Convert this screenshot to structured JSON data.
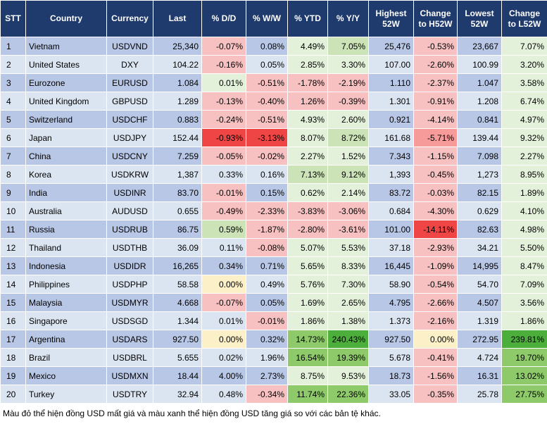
{
  "headers": [
    "STT",
    "Country",
    "Currency",
    "Last",
    "% D/D",
    "% W/W",
    "% YTD",
    "% Y/Y",
    "Highest 52W",
    "Change to H52W",
    "Lowest 52W",
    "Change to L52W"
  ],
  "rows": [
    {
      "stt": "1",
      "country": "Vietnam",
      "currency": "USDVND",
      "last": "25,340",
      "dd": "-0.07%",
      "ww": "0.08%",
      "ytd": "4.49%",
      "yy": "7.05%",
      "high": "25,476",
      "chh": "-0.53%",
      "low": "23,667",
      "chl": "7.07%"
    },
    {
      "stt": "2",
      "country": "United States",
      "currency": "DXY",
      "last": "104.22",
      "dd": "-0.16%",
      "ww": "0.05%",
      "ytd": "2.85%",
      "yy": "3.30%",
      "high": "107.00",
      "chh": "-2.60%",
      "low": "100.99",
      "chl": "3.20%"
    },
    {
      "stt": "3",
      "country": "Eurozone",
      "currency": "EURUSD",
      "last": "1.084",
      "dd": "0.01%",
      "ww": "-0.51%",
      "ytd": "-1.78%",
      "yy": "-2.19%",
      "high": "1.110",
      "chh": "-2.37%",
      "low": "1.047",
      "chl": "3.58%"
    },
    {
      "stt": "4",
      "country": "United Kingdom",
      "currency": "GBPUSD",
      "last": "1.289",
      "dd": "-0.13%",
      "ww": "-0.40%",
      "ytd": "1.26%",
      "yy": "-0.39%",
      "high": "1.301",
      "chh": "-0.91%",
      "low": "1.208",
      "chl": "6.74%"
    },
    {
      "stt": "5",
      "country": "Switzerland",
      "currency": "USDCHF",
      "last": "0.883",
      "dd": "-0.24%",
      "ww": "-0.51%",
      "ytd": "4.93%",
      "yy": "2.60%",
      "high": "0.921",
      "chh": "-4.14%",
      "low": "0.841",
      "chl": "4.97%"
    },
    {
      "stt": "6",
      "country": "Japan",
      "currency": "USDJPY",
      "last": "152.44",
      "dd": "-0.93%",
      "ww": "-3.13%",
      "ytd": "8.07%",
      "yy": "8.72%",
      "high": "161.68",
      "chh": "-5.71%",
      "low": "139.44",
      "chl": "9.32%"
    },
    {
      "stt": "7",
      "country": "China",
      "currency": "USDCNY",
      "last": "7.259",
      "dd": "-0.05%",
      "ww": "-0.02%",
      "ytd": "2.27%",
      "yy": "1.52%",
      "high": "7.343",
      "chh": "-1.15%",
      "low": "7.098",
      "chl": "2.27%"
    },
    {
      "stt": "8",
      "country": "Korea",
      "currency": "USDKRW",
      "last": "1,387",
      "dd": "0.33%",
      "ww": "0.16%",
      "ytd": "7.13%",
      "yy": "9.12%",
      "high": "1,393",
      "chh": "-0.45%",
      "low": "1,273",
      "chl": "8.95%"
    },
    {
      "stt": "9",
      "country": "India",
      "currency": "USDINR",
      "last": "83.70",
      "dd": "-0.01%",
      "ww": "0.15%",
      "ytd": "0.62%",
      "yy": "2.14%",
      "high": "83.72",
      "chh": "-0.03%",
      "low": "82.15",
      "chl": "1.89%"
    },
    {
      "stt": "10",
      "country": "Australia",
      "currency": "AUDUSD",
      "last": "0.655",
      "dd": "-0.49%",
      "ww": "-2.33%",
      "ytd": "-3.83%",
      "yy": "-3.06%",
      "high": "0.684",
      "chh": "-4.30%",
      "low": "0.629",
      "chl": "4.10%"
    },
    {
      "stt": "11",
      "country": "Russia",
      "currency": "USDRUB",
      "last": "86.75",
      "dd": "0.59%",
      "ww": "-1.87%",
      "ytd": "-2.80%",
      "yy": "-3.61%",
      "high": "101.00",
      "chh": "-14.11%",
      "low": "82.63",
      "chl": "4.98%"
    },
    {
      "stt": "12",
      "country": "Thailand",
      "currency": "USDTHB",
      "last": "36.09",
      "dd": "0.11%",
      "ww": "-0.08%",
      "ytd": "5.07%",
      "yy": "5.53%",
      "high": "37.18",
      "chh": "-2.93%",
      "low": "34.21",
      "chl": "5.50%"
    },
    {
      "stt": "13",
      "country": "Indonesia",
      "currency": "USDIDR",
      "last": "16,265",
      "dd": "0.34%",
      "ww": "0.71%",
      "ytd": "5.65%",
      "yy": "8.33%",
      "high": "16,445",
      "chh": "-1.09%",
      "low": "14,995",
      "chl": "8.47%"
    },
    {
      "stt": "14",
      "country": "Philippines",
      "currency": "USDPHP",
      "last": "58.58",
      "dd": "0.00%",
      "ww": "0.49%",
      "ytd": "5.76%",
      "yy": "7.30%",
      "high": "58.90",
      "chh": "-0.54%",
      "low": "54.70",
      "chl": "7.09%"
    },
    {
      "stt": "15",
      "country": "Malaysia",
      "currency": "USDMYR",
      "last": "4.668",
      "dd": "-0.07%",
      "ww": "0.05%",
      "ytd": "1.69%",
      "yy": "2.65%",
      "high": "4.795",
      "chh": "-2.66%",
      "low": "4.507",
      "chl": "3.56%"
    },
    {
      "stt": "16",
      "country": "Singapore",
      "currency": "USDSGD",
      "last": "1.344",
      "dd": "0.01%",
      "ww": "-0.01%",
      "ytd": "1.86%",
      "yy": "1.38%",
      "high": "1.373",
      "chh": "-2.16%",
      "low": "1.319",
      "chl": "1.86%"
    },
    {
      "stt": "17",
      "country": "Argentina",
      "currency": "USDARS",
      "last": "927.50",
      "dd": "0.00%",
      "ww": "0.32%",
      "ytd": "14.73%",
      "yy": "240.43%",
      "high": "927.50",
      "chh": "0.00%",
      "low": "272.95",
      "chl": "239.81%"
    },
    {
      "stt": "18",
      "country": "Brazil",
      "currency": "USDBRL",
      "last": "5.655",
      "dd": "0.02%",
      "ww": "1.96%",
      "ytd": "16.54%",
      "yy": "19.39%",
      "high": "5.678",
      "chh": "-0.41%",
      "low": "4.724",
      "chl": "19.70%"
    },
    {
      "stt": "19",
      "country": "Mexico",
      "currency": "USDMXN",
      "last": "18.44",
      "dd": "4.00%",
      "ww": "2.73%",
      "ytd": "8.75%",
      "yy": "9.53%",
      "high": "18.73",
      "chh": "-1.56%",
      "low": "16.31",
      "chl": "13.02%"
    },
    {
      "stt": "20",
      "country": "Turkey",
      "currency": "USDTRY",
      "last": "32.94",
      "dd": "0.48%",
      "ww": "-0.34%",
      "ytd": "11.74%",
      "yy": "22.36%",
      "high": "33.05",
      "chh": "-0.35%",
      "low": "25.78",
      "chl": "27.75%"
    }
  ],
  "highlights": {
    "dd": {
      "1": "neg-light",
      "2": "neg-light",
      "3": "pos-light",
      "4": "neg-light",
      "5": "neg-light",
      "6": "neg-strong",
      "7": "neg-light",
      "9": "neg-light",
      "10": "neg-light",
      "11": "pos-mid",
      "14": "neutral",
      "15": "neg-light",
      "17": "neutral"
    },
    "ww": {
      "3": "neg-light",
      "4": "neg-light",
      "5": "neg-light",
      "6": "neg-strong",
      "7": "neg-light",
      "10": "neg-light",
      "11": "neg-light",
      "12": "neg-light",
      "16": "neg-light",
      "20": "neg-light"
    },
    "ytd": {
      "1": "pos-light",
      "2": "pos-light",
      "3": "neg-light",
      "4": "neg-light",
      "5": "pos-light",
      "6": "pos-light",
      "7": "pos-light",
      "8": "pos-mid",
      "9": "pos-light",
      "10": "neg-light",
      "11": "neg-light",
      "12": "pos-light",
      "13": "pos-light",
      "14": "pos-light",
      "15": "pos-light",
      "16": "pos-light",
      "17": "pos-strong",
      "18": "pos-strong",
      "19": "pos-light",
      "20": "pos-strong"
    },
    "yy": {
      "1": "pos-mid",
      "2": "pos-light",
      "3": "neg-light",
      "4": "neg-light",
      "5": "pos-light",
      "6": "pos-mid",
      "7": "pos-light",
      "8": "pos-mid",
      "9": "pos-light",
      "10": "neg-light",
      "11": "neg-light",
      "12": "pos-light",
      "13": "pos-light",
      "14": "pos-light",
      "15": "pos-light",
      "16": "pos-light",
      "17": "pos-max",
      "18": "pos-strong",
      "19": "pos-light",
      "20": "pos-strong"
    },
    "chh": {
      "1": "neg-light",
      "2": "neg-light",
      "3": "neg-light",
      "4": "neg-light",
      "5": "neg-light",
      "6": "neg-mid",
      "7": "neg-light",
      "8": "neg-light",
      "9": "neg-light",
      "10": "neg-light",
      "11": "neg-strong",
      "12": "neg-light",
      "13": "neg-light",
      "14": "neg-light",
      "15": "neg-light",
      "16": "neg-light",
      "17": "neutral",
      "18": "neg-light",
      "19": "neg-light",
      "20": "neg-light"
    },
    "chl": {
      "1": "pos-light",
      "2": "pos-light",
      "3": "pos-light",
      "4": "pos-light",
      "5": "pos-light",
      "6": "pos-light",
      "7": "pos-light",
      "8": "pos-light",
      "9": "pos-light",
      "10": "pos-light",
      "11": "pos-light",
      "12": "pos-light",
      "13": "pos-light",
      "14": "pos-light",
      "15": "pos-light",
      "16": "pos-light",
      "17": "pos-max",
      "18": "pos-strong",
      "19": "pos-strong",
      "20": "pos-strong"
    }
  },
  "footnote": "Màu đỏ thể hiện đồng USD mất giá và màu xanh thể hiện đồng USD tăng giá so với các bản tệ khác."
}
